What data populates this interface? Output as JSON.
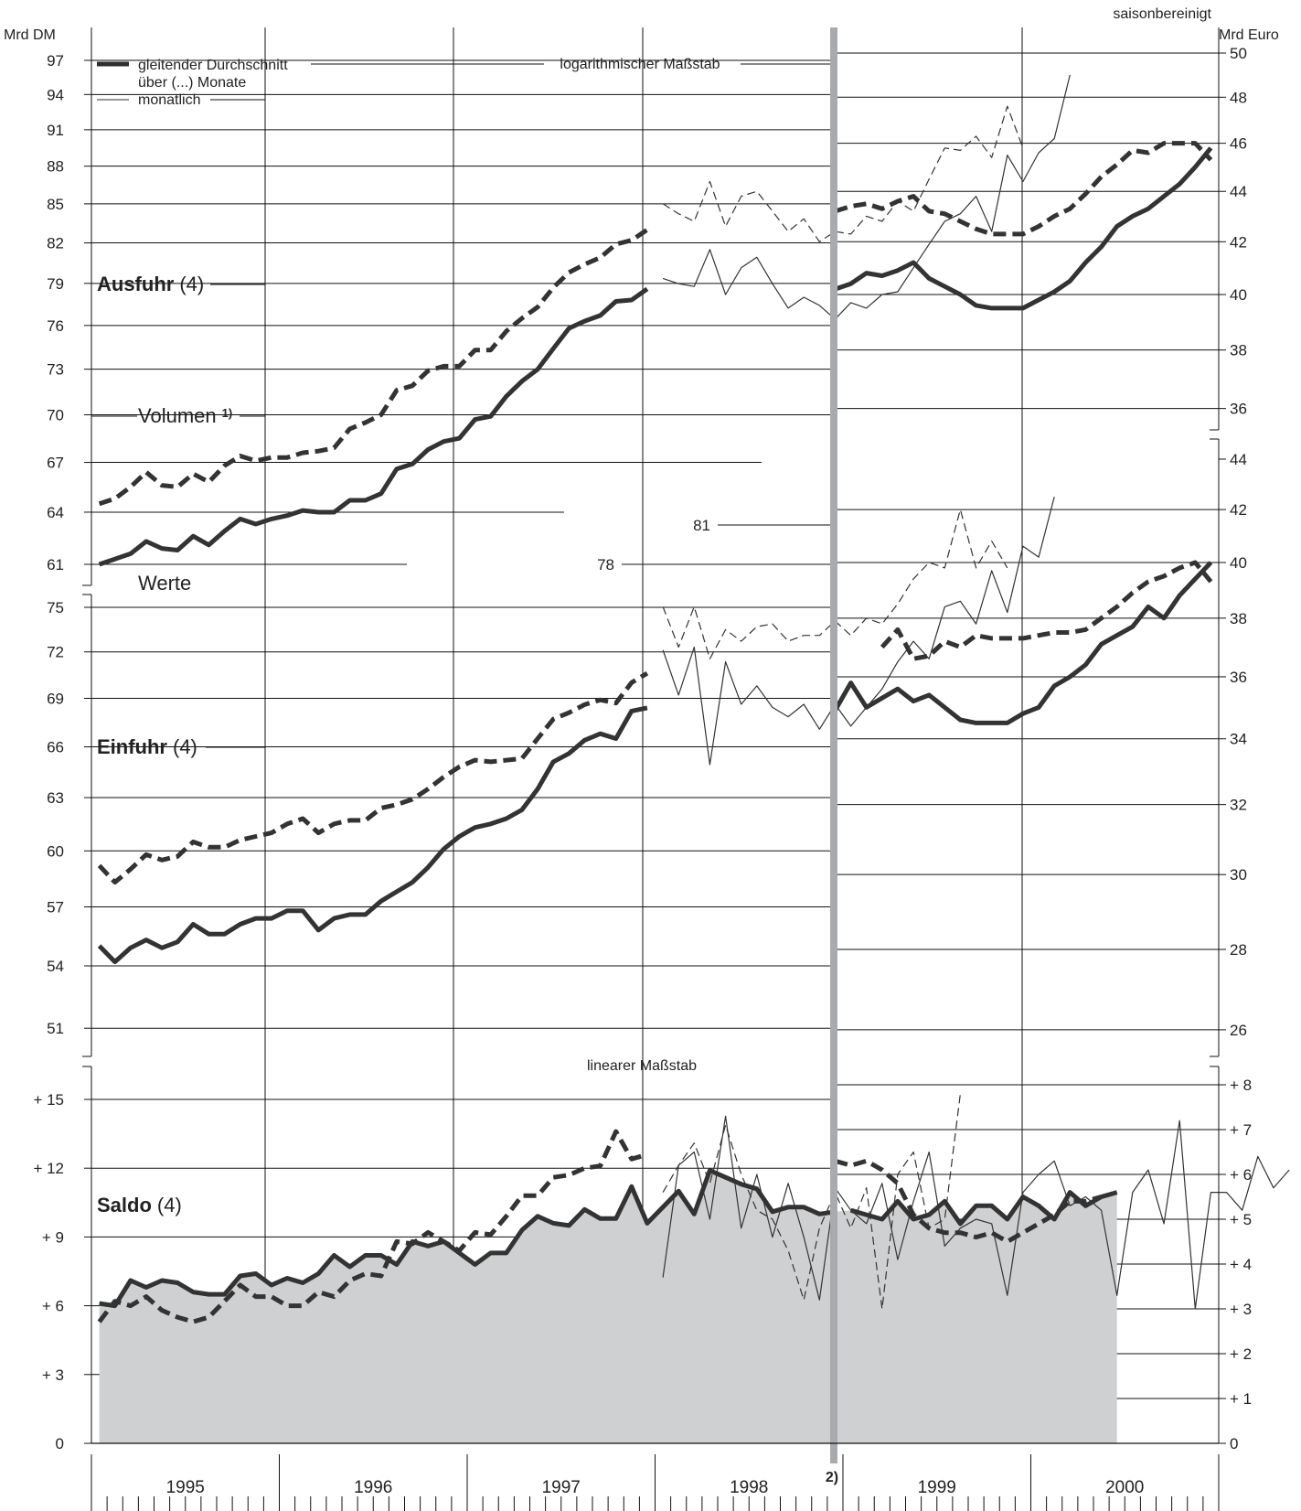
{
  "chart_data": {
    "type": "line",
    "note_top_right": "saisonbereinigt",
    "left_unit": "Mrd DM",
    "right_unit": "Mrd Euro",
    "log_scale_label": "logarithmischer Maßstab",
    "linear_scale_label": "linearer Maßstab",
    "legend": {
      "moving_avg_line1": "gleitender Durchschnitt",
      "moving_avg_line2": "über (...) Monate",
      "monthly": "monatlich"
    },
    "break_label": "2)",
    "years": [
      "1995",
      "1996",
      "1997",
      "1998",
      "1999",
      "2000"
    ],
    "panels": {
      "ausfuhr": {
        "name": "Ausfuhr",
        "months_label": "(4)",
        "volumen_label": "Volumen",
        "volumen_footnote": "1)",
        "left_ticks": [
          61,
          64,
          67,
          70,
          73,
          76,
          79,
          82,
          85,
          88,
          91,
          94,
          97
        ],
        "right_ticks": [
          36,
          38,
          40,
          42,
          44,
          46,
          48,
          50
        ],
        "right_ylim": [
          35.2,
          50.5
        ],
        "extra_ticks_in_plot": [
          78,
          81
        ],
        "start_month": "1995-01",
        "werte_avg_mrd_dm": [
          61.0,
          61.3,
          61.6,
          62.3,
          61.9,
          61.8,
          62.6,
          62.1,
          62.9,
          63.6,
          63.3,
          63.6,
          63.8,
          64.1,
          64.0,
          64.0,
          64.7,
          64.7,
          65.1,
          66.6,
          66.9,
          67.8,
          68.3,
          68.5,
          69.7,
          69.9,
          71.2,
          72.2,
          73.0,
          74.4,
          75.8,
          76.3,
          76.7,
          77.7,
          77.8,
          78.6
        ],
        "werte_avg_mrd_euro": [
          40.2,
          40.4,
          40.8,
          40.7,
          40.9,
          41.2,
          40.6,
          40.3,
          40.0,
          39.6,
          39.5,
          39.5,
          39.5,
          39.8,
          40.1,
          40.5,
          41.2,
          41.8,
          42.6,
          43.0,
          43.3,
          43.8,
          44.3,
          45.0,
          45.8
        ],
        "werte_monthly_mrd_euro": [
          40.6,
          40.4,
          40.3,
          41.7,
          40.0,
          41.0,
          41.4,
          40.4,
          39.5,
          39.9,
          39.6,
          39.1,
          39.7,
          39.5,
          40.0,
          40.1,
          41.0,
          41.9,
          42.8,
          43.1,
          43.8,
          42.4,
          45.5,
          44.4,
          45.6,
          46.2,
          49.0
        ],
        "volumen_avg_mrd_dm": [
          64.5,
          64.8,
          65.5,
          66.4,
          65.6,
          65.5,
          66.3,
          65.8,
          66.8,
          67.4,
          67.1,
          67.3,
          67.3,
          67.6,
          67.7,
          67.9,
          69.1,
          69.5,
          70.0,
          71.6,
          71.9,
          72.9,
          73.2,
          73.2,
          74.3,
          74.3,
          75.6,
          76.5,
          77.3,
          78.7,
          79.8,
          80.4,
          80.9,
          81.9,
          82.2,
          83.0
        ],
        "volumen_avg_mrd_euro": [
          43.2,
          43.4,
          43.5,
          43.3,
          43.6,
          43.8,
          43.2,
          43.1,
          42.8,
          42.5,
          42.3,
          42.3,
          42.3,
          42.6,
          43.0,
          43.3,
          43.9,
          44.6,
          45.1,
          45.7,
          45.6,
          46.0,
          46.0,
          46.0,
          45.3
        ],
        "volumen_monthly_mrd_euro": [
          43.5,
          43.1,
          42.8,
          44.4,
          42.6,
          43.8,
          44.0,
          43.2,
          42.4,
          42.9,
          42.0,
          42.4,
          42.3,
          43.0,
          42.8,
          43.6,
          43.2,
          44.5,
          45.8,
          45.7,
          46.3,
          45.4,
          47.6,
          45.8
        ]
      },
      "einfuhr": {
        "name": "Einfuhr",
        "months_label": "(4)",
        "werte_label": "Werte",
        "left_ticks": [
          51,
          54,
          57,
          60,
          63,
          66,
          69,
          72,
          75
        ],
        "right_ticks": [
          26,
          28,
          30,
          32,
          34,
          36,
          38,
          40,
          42,
          44
        ],
        "right_ylim": [
          25.35,
          44.0
        ],
        "start_month": "1995-01",
        "werte_avg_mrd_dm": [
          55.0,
          54.2,
          54.9,
          55.3,
          54.9,
          55.2,
          56.1,
          55.6,
          55.6,
          56.1,
          56.4,
          56.4,
          56.8,
          56.8,
          55.8,
          56.4,
          56.6,
          56.6,
          57.3,
          57.8,
          58.3,
          59.1,
          60.1,
          60.8,
          61.3,
          61.5,
          61.8,
          62.3,
          63.5,
          65.1,
          65.6,
          66.4,
          66.8,
          66.5,
          68.2,
          68.4
        ],
        "werte_avg_mrd_euro": [
          34.9,
          35.8,
          35.0,
          35.3,
          35.6,
          35.2,
          35.4,
          35.0,
          34.6,
          34.5,
          34.5,
          34.5,
          34.8,
          35.0,
          35.7,
          36.0,
          36.4,
          37.1,
          37.4,
          37.7,
          38.4,
          38.0,
          38.8,
          39.4,
          40.0
        ],
        "werte_monthly_mrd_euro": [
          36.9,
          35.4,
          37.0,
          33.2,
          36.5,
          35.1,
          35.7,
          35.0,
          34.7,
          35.1,
          34.3,
          35.1,
          34.4,
          35.0,
          35.6,
          36.5,
          37.2,
          36.6,
          38.4,
          38.6,
          37.8,
          39.7,
          38.2,
          40.6,
          40.2,
          42.5
        ],
        "volumen_avg_mrd_dm": [
          59.2,
          58.3,
          59.0,
          59.8,
          59.5,
          59.7,
          60.5,
          60.2,
          60.2,
          60.6,
          60.8,
          61.0,
          61.5,
          61.8,
          61.0,
          61.5,
          61.7,
          61.7,
          62.4,
          62.6,
          62.9,
          63.5,
          64.2,
          64.8,
          65.2,
          65.1,
          65.2,
          65.3,
          66.5,
          67.7,
          68.1,
          68.6,
          68.9,
          68.7,
          70.0,
          70.6
        ],
        "volumen_avg_mrd_euro": [
          37.0,
          37.6,
          36.6,
          36.7,
          37.2,
          37.0,
          37.4,
          37.3,
          37.3,
          37.3,
          37.4,
          37.5,
          37.5,
          37.6,
          38.0,
          38.4,
          38.9,
          39.3,
          39.5,
          39.8,
          40.0,
          39.3
        ],
        "volumen_monthly_mrd_euro": [
          38.4,
          37.0,
          38.4,
          36.6,
          37.6,
          37.2,
          37.7,
          37.8,
          37.2,
          37.4,
          37.4,
          37.9,
          37.4,
          38.0,
          37.8,
          38.5,
          39.4,
          40.0,
          39.8,
          42.0,
          39.8,
          40.8,
          39.8
        ]
      },
      "saldo": {
        "name": "Saldo",
        "months_label": "(4)",
        "left_ticks": [
          0,
          3,
          6,
          9,
          12,
          15
        ],
        "left_tick_labels": [
          "0",
          "+  3",
          "+  6",
          "+  9",
          "+ 12",
          "+ 15"
        ],
        "right_ticks": [
          0,
          1,
          2,
          3,
          4,
          5,
          6,
          7,
          8
        ],
        "right_tick_labels": [
          "0",
          "+ 1",
          "+ 2",
          "+ 3",
          "+ 4",
          "+ 5",
          "+ 6",
          "+ 7",
          "+ 8"
        ],
        "right_ylim": [
          0,
          8.4
        ],
        "start_month": "1995-01",
        "werte_avg_mrd_dm": [
          6.1,
          6.0,
          7.1,
          6.8,
          7.1,
          7.0,
          6.6,
          6.5,
          6.5,
          7.3,
          7.4,
          6.9,
          7.2,
          7.0,
          7.4,
          8.2,
          7.7,
          8.2,
          8.2,
          7.8,
          8.8,
          8.6,
          8.8,
          8.3,
          7.8,
          8.3,
          8.3,
          9.3,
          9.9,
          9.6,
          9.5,
          10.2,
          9.8,
          9.8,
          11.2,
          9.6,
          10.3,
          11.0,
          10.0,
          11.9,
          11.6,
          11.3,
          11.1,
          10.1,
          10.3,
          10.3,
          10.0,
          10.1
        ],
        "werte_avg_mrd_euro": [
          5.2,
          5.1,
          5.0,
          5.4,
          5.0,
          5.1,
          5.4,
          4.9,
          5.3,
          5.3,
          5.0,
          5.5,
          5.3,
          5.0,
          5.6,
          5.3,
          5.5,
          5.6
        ],
        "werte_monthly_mrd_euro": [
          3.7,
          6.2,
          6.5,
          5.0,
          7.3,
          4.8,
          6.0,
          4.6,
          5.8,
          4.6,
          3.2,
          5.7,
          5.2,
          4.9,
          5.8,
          4.1,
          5.4,
          6.5,
          4.4,
          4.8,
          5.0,
          4.9,
          3.3,
          5.6,
          6.0,
          6.3,
          5.3,
          5.5,
          5.2,
          3.3,
          5.6,
          6.1,
          4.9,
          7.2,
          3.0,
          5.6,
          5.6,
          5.2,
          6.4,
          5.7,
          6.1
        ],
        "volumen_avg_mrd_dm": [
          5.3,
          6.2,
          6.0,
          6.4,
          5.8,
          5.5,
          5.3,
          5.5,
          6.2,
          6.9,
          6.4,
          6.4,
          6.0,
          6.0,
          6.6,
          6.4,
          7.1,
          7.4,
          7.3,
          8.8,
          8.7,
          9.2,
          8.8,
          8.4,
          9.2,
          9.1,
          9.9,
          10.8,
          10.8,
          11.6,
          11.7,
          12.0,
          12.1,
          13.6,
          12.4,
          12.6
        ],
        "volumen_avg_mrd_euro": [
          6.3,
          6.2,
          6.3,
          6.1,
          5.8,
          5.1,
          4.8,
          4.7,
          4.7,
          4.6,
          4.7,
          4.5,
          4.7,
          4.9,
          5.1,
          5.4,
          5.4,
          5.5
        ],
        "volumen_monthly_mrd_euro": [
          5.6,
          6.2,
          6.7,
          5.8,
          7.1,
          6.0,
          5.2,
          5.0,
          4.3,
          3.2,
          4.8,
          5.6,
          4.8,
          5.7,
          3.0,
          6.0,
          6.5,
          4.8,
          5.0,
          7.8
        ]
      }
    }
  }
}
